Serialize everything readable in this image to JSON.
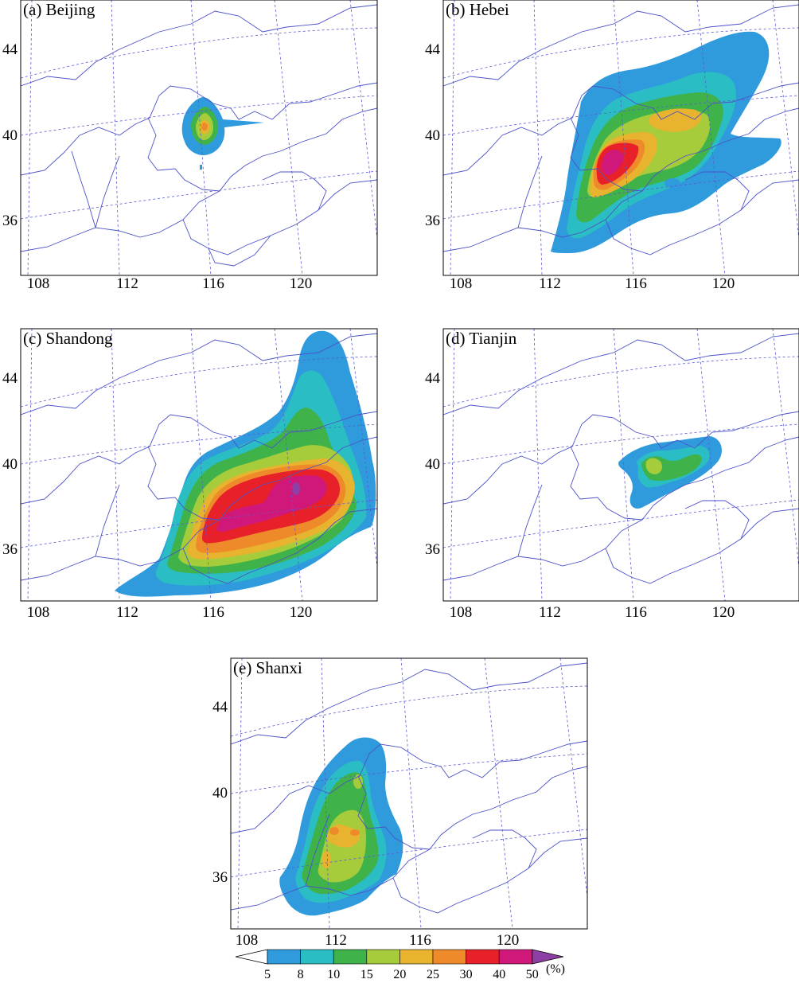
{
  "panels": [
    {
      "id": "beijing",
      "title": "(a) Beijing"
    },
    {
      "id": "hebei",
      "title": "(b) Hebei"
    },
    {
      "id": "shandong",
      "title": "(c) Shandong"
    },
    {
      "id": "tianjin",
      "title": "(d) Tianjin"
    },
    {
      "id": "shanxi",
      "title": "(e) Shanxi"
    }
  ],
  "axes": {
    "lon_ticks": [
      "108",
      "112",
      "116",
      "120"
    ],
    "lat_ticks": [
      "44",
      "40",
      "36"
    ]
  },
  "colorbar": {
    "unit": "(%)",
    "levels": [
      "5",
      "8",
      "10",
      "15",
      "20",
      "25",
      "30",
      "40",
      "50"
    ],
    "colors": [
      "#ffffff",
      "#2f9bdc",
      "#2bbdc4",
      "#3fb24a",
      "#a6cc3c",
      "#e8b32e",
      "#ef8a2a",
      "#e8202a",
      "#d0187a",
      "#8e3fa3"
    ]
  }
}
